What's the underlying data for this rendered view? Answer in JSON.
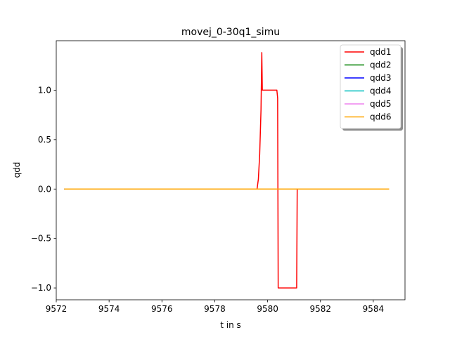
{
  "chart_data": {
    "type": "line",
    "title": "movej_0-30q1_simu",
    "xlabel": "t in s",
    "ylabel": "qdd",
    "xlim": [
      9572.0,
      9585.2
    ],
    "ylim": [
      -1.12,
      1.5
    ],
    "xticks": [
      9572,
      9574,
      9576,
      9578,
      9580,
      9582,
      9584
    ],
    "xtick_labels": [
      "9572",
      "9574",
      "9576",
      "9578",
      "9580",
      "9582",
      "9584"
    ],
    "yticks": [
      -1.0,
      -0.5,
      0.0,
      0.5,
      1.0
    ],
    "ytick_labels": [
      "−1.0",
      "−0.5",
      "0.0",
      "0.5",
      "1.0"
    ],
    "grid": false,
    "legend_position": "top-right",
    "series": [
      {
        "name": "qdd1",
        "color": "#ff0000",
        "x": [
          9572.3,
          9579.6,
          9579.65,
          9579.7,
          9579.75,
          9579.78,
          9579.8,
          9579.83,
          9579.85,
          9580.35,
          9580.38,
          9580.4,
          9581.1,
          9581.12,
          9584.6
        ],
        "y": [
          0.0,
          0.0,
          0.1,
          0.35,
          0.8,
          1.38,
          1.0,
          1.0,
          1.0,
          1.0,
          0.92,
          -1.0,
          -1.0,
          0.0,
          0.0
        ]
      },
      {
        "name": "qdd2",
        "color": "#008000",
        "x": [
          9572.3,
          9584.6
        ],
        "y": [
          0.0,
          0.0
        ]
      },
      {
        "name": "qdd3",
        "color": "#0000ff",
        "x": [
          9572.3,
          9584.6
        ],
        "y": [
          0.0,
          0.0
        ]
      },
      {
        "name": "qdd4",
        "color": "#00bfbf",
        "x": [
          9572.3,
          9584.6
        ],
        "y": [
          0.0,
          0.0
        ]
      },
      {
        "name": "qdd5",
        "color": "#ee82ee",
        "x": [
          9572.3,
          9584.6
        ],
        "y": [
          0.0,
          0.0
        ]
      },
      {
        "name": "qdd6",
        "color": "#ffa500",
        "x": [
          9572.3,
          9584.6
        ],
        "y": [
          0.0,
          0.0
        ]
      }
    ]
  }
}
